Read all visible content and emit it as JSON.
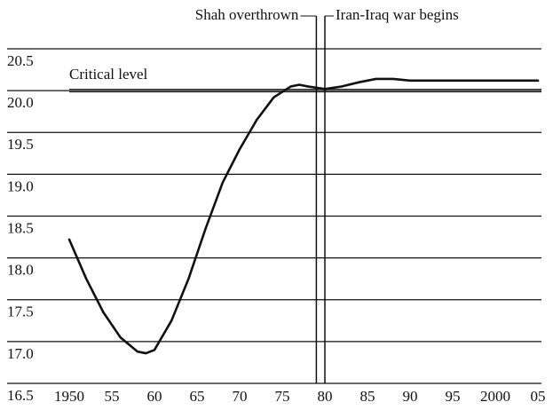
{
  "chart_data": {
    "type": "line",
    "x": [
      1950,
      1952,
      1954,
      1956,
      1958,
      1959,
      1960,
      1962,
      1964,
      1966,
      1968,
      1970,
      1972,
      1974,
      1976,
      1977,
      1978,
      1980,
      1982,
      1984,
      1986,
      1988,
      1990,
      1995,
      2000,
      2005
    ],
    "series": [
      {
        "color": "#111111",
        "values": [
          18.22,
          17.75,
          17.35,
          17.05,
          16.88,
          16.86,
          16.9,
          17.25,
          17.75,
          18.35,
          18.9,
          19.3,
          19.65,
          19.92,
          20.05,
          20.07,
          20.05,
          20.02,
          20.05,
          20.1,
          20.14,
          20.14,
          20.12,
          20.12,
          20.12,
          20.12
        ]
      }
    ],
    "xlim": [
      1947,
      2006
    ],
    "xticks": [
      1950,
      {
        "value": 1955,
        "label": "55"
      },
      {
        "value": 1960,
        "label": "60"
      },
      {
        "value": 1965,
        "label": "65"
      },
      {
        "value": 1970,
        "label": "70"
      },
      {
        "value": 1975,
        "label": "75"
      },
      {
        "value": 1980,
        "label": "80"
      },
      {
        "value": 1985,
        "label": "85"
      },
      {
        "value": 1990,
        "label": "90"
      },
      {
        "value": 1995,
        "label": "95"
      },
      2000,
      {
        "value": 2005,
        "label": "05"
      }
    ],
    "ylim": [
      16.5,
      20.65
    ],
    "yticks": [
      16.5,
      {
        "value": 17,
        "label": "17.0"
      },
      17.5,
      {
        "value": 18,
        "label": "18.0"
      },
      18.5,
      {
        "value": 19,
        "label": "19.0"
      },
      19.5,
      {
        "value": 20,
        "label": "20.0"
      },
      20.5
    ],
    "grid": true,
    "critical_level": {
      "label": "Critical level",
      "value": 20
    },
    "annotations": [
      {
        "text": "Shah overthrown",
        "x": 1979
      },
      {
        "text": "Iran-Iraq war begins",
        "x": 1980
      }
    ]
  }
}
